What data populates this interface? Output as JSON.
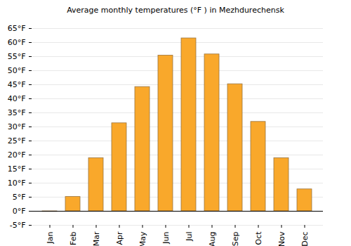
{
  "chart_data": {
    "type": "bar",
    "title": "Average monthly temperatures (°F ) in Mezhdurechensk",
    "categories": [
      "Jan",
      "Feb",
      "Mar",
      "Apr",
      "May",
      "Jun",
      "Jul",
      "Aug",
      "Sep",
      "Oct",
      "Nov",
      "Dec"
    ],
    "values": [
      -0.2,
      5.1,
      18.9,
      31.3,
      44.2,
      55.4,
      61.5,
      55.8,
      45.2,
      31.8,
      18.9,
      7.8
    ],
    "color": "#f9a82b",
    "ylim": [
      -5,
      65
    ],
    "yticks": [
      {
        "value": -5,
        "label": "-5°F"
      },
      {
        "value": 0,
        "label": "0°F"
      },
      {
        "value": 5,
        "label": "5°F"
      },
      {
        "value": 10,
        "label": "10°F"
      },
      {
        "value": 15,
        "label": "15°F"
      },
      {
        "value": 20,
        "label": "20°F"
      },
      {
        "value": 25,
        "label": "25°F"
      },
      {
        "value": 30,
        "label": "30°F"
      },
      {
        "value": 35,
        "label": "35°F"
      },
      {
        "value": 40,
        "label": "40°F"
      },
      {
        "value": 45,
        "label": "45°F"
      },
      {
        "value": 50,
        "label": "50°F"
      },
      {
        "value": 55,
        "label": "55°F"
      },
      {
        "value": 60,
        "label": "60°F"
      },
      {
        "value": 65,
        "label": "65°F"
      }
    ],
    "grid": true
  }
}
